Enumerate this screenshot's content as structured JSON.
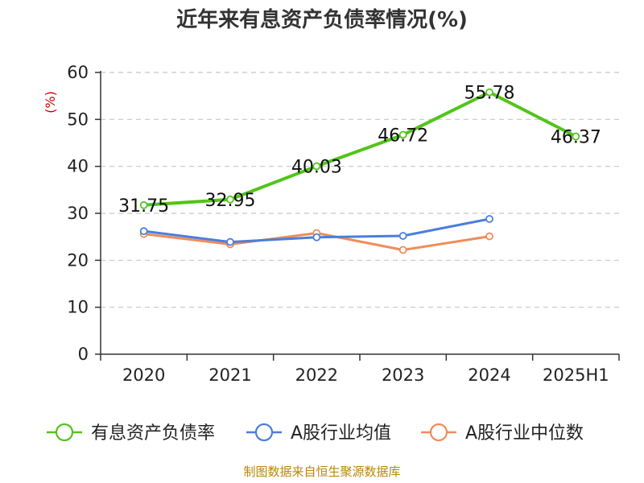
{
  "chart_data": {
    "type": "line",
    "title": "近年来有息资产负债率情况(%)",
    "ylabel": "(%)",
    "xlabel": "",
    "ylim": [
      0,
      60
    ],
    "yticks": [
      0,
      10,
      20,
      30,
      40,
      50,
      60
    ],
    "categories": [
      "2020",
      "2021",
      "2022",
      "2023",
      "2024",
      "2025H1"
    ],
    "grid": true,
    "legend_position": "bottom",
    "series": [
      {
        "name": "有息资产负债率",
        "color": "#52c41a",
        "values": [
          31.75,
          32.95,
          40.03,
          46.72,
          55.78,
          46.37
        ],
        "labels": [
          "31.75",
          "32.95",
          "40.03",
          "46.72",
          "55.78",
          "46.37"
        ]
      },
      {
        "name": "A股行业均值",
        "color": "#4a7fdb",
        "values": [
          26.2,
          23.9,
          24.9,
          25.2,
          28.8,
          null
        ]
      },
      {
        "name": "A股行业中位数",
        "color": "#f08c5a",
        "values": [
          25.6,
          23.4,
          25.8,
          22.2,
          25.1,
          null
        ]
      }
    ]
  },
  "footer": {
    "source": "制图数据来自恒生聚源数据库"
  }
}
